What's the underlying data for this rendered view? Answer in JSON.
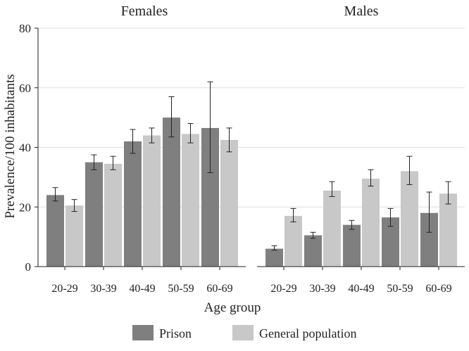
{
  "chart_data": {
    "type": "bar",
    "panels": [
      {
        "title": "Females",
        "categories": [
          "20-29",
          "30-39",
          "40-49",
          "50-59",
          "60-69"
        ],
        "series": [
          {
            "name": "Prison",
            "values": [
              24,
              35,
              42,
              50,
              46.5
            ],
            "err_low": [
              22,
              32.5,
              38,
              43.5,
              31.5
            ],
            "err_high": [
              26.5,
              37.5,
              46,
              57,
              62
            ]
          },
          {
            "name": "General population",
            "values": [
              20.5,
              34.5,
              44,
              44.5,
              42.5
            ],
            "err_low": [
              18.5,
              32.5,
              41.5,
              41.5,
              38.5
            ],
            "err_high": [
              22.5,
              37,
              46.5,
              48,
              46.5
            ]
          }
        ]
      },
      {
        "title": "Males",
        "categories": [
          "20-29",
          "30-39",
          "40-49",
          "50-59",
          "60-69"
        ],
        "series": [
          {
            "name": "Prison",
            "values": [
              6,
              10.5,
              14,
              16.5,
              18
            ],
            "err_low": [
              5.5,
              9.5,
              12.5,
              13.5,
              11.5
            ],
            "err_high": [
              7,
              11.5,
              15.5,
              19.5,
              25
            ]
          },
          {
            "name": "General population",
            "values": [
              17,
              25.5,
              29.5,
              32,
              24.5
            ],
            "err_low": [
              15,
              23.5,
              27,
              27.5,
              21
            ],
            "err_high": [
              19.5,
              28.5,
              32.5,
              37,
              28.5
            ]
          }
        ]
      }
    ],
    "ylabel": "Prevalence/100 inhabitants",
    "xlabel": "Age group",
    "ylim": [
      0,
      80
    ],
    "yticks": [
      0,
      20,
      40,
      60,
      80
    ],
    "grid": true,
    "legend": [
      "Prison",
      "General population"
    ],
    "legend_position": "bottom",
    "colors": {
      "Prison": "#7f7f7f",
      "General population": "#c8c8c8",
      "grid": "#dedede",
      "axis": "#222222",
      "error_bar": "#222222"
    }
  }
}
